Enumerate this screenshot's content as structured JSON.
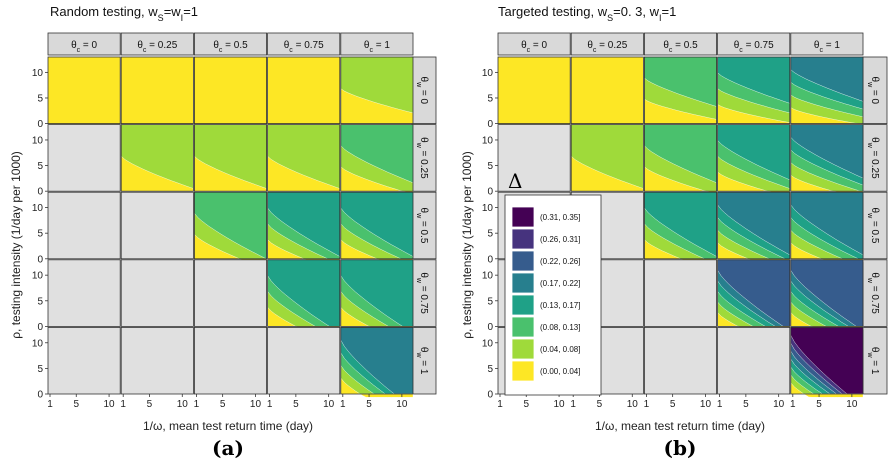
{
  "chart_data": [
    {
      "type": "heatmap",
      "panel": "(a)",
      "title": "Random testing, wS=wI=1",
      "title_main": "Random testing, w",
      "title_sub1": "S",
      "title_mid": "=w",
      "title_sub2": "I",
      "title_end": "=1",
      "xlabel": "1/ω, mean test return time (day)",
      "ylabel": "ρ, testing intensity (1/day per 1000)",
      "x_ticks": [
        1,
        5,
        10
      ],
      "y_ticks": [
        0,
        5,
        10
      ],
      "xlim": [
        1,
        12
      ],
      "ylim": [
        0,
        13
      ],
      "col_facet_name": "θc",
      "col_facets": [
        "0",
        "0.25",
        "0.5",
        "0.75",
        "1"
      ],
      "row_facet_name": "θw",
      "row_facets": [
        "0",
        "0.25",
        "0.5",
        "0.75",
        "1"
      ],
      "cells": [
        [
          {
            "levels": [
              0
            ]
          },
          {
            "levels": [
              0
            ]
          },
          {
            "levels": [
              0
            ]
          },
          {
            "levels": [
              0
            ]
          },
          {
            "levels": [
              0,
              1
            ]
          }
        ],
        [
          null,
          {
            "levels": [
              0,
              1
            ]
          },
          {
            "levels": [
              0,
              1
            ]
          },
          {
            "levels": [
              0,
              1
            ]
          },
          {
            "levels": [
              0,
              1,
              2
            ]
          }
        ],
        [
          null,
          null,
          {
            "levels": [
              0,
              1,
              2
            ]
          },
          {
            "levels": [
              0,
              1,
              2,
              3
            ]
          },
          {
            "levels": [
              0,
              1,
              2,
              3
            ]
          }
        ],
        [
          null,
          null,
          null,
          {
            "levels": [
              0,
              1,
              2,
              3
            ]
          },
          {
            "levels": [
              0,
              1,
              2,
              3
            ]
          }
        ],
        [
          null,
          null,
          null,
          null,
          {
            "levels": [
              0,
              1,
              2,
              3,
              4
            ]
          }
        ]
      ]
    },
    {
      "type": "heatmap",
      "panel": "(b)",
      "title": "Targeted testing, wS=0. 3, wI=1",
      "title_main": "Targeted testing, w",
      "title_sub1": "S",
      "title_mid": "=0. 3, w",
      "title_sub2": "I",
      "title_end": "=1",
      "xlabel": "1/ω, mean test return time (day)",
      "ylabel": "ρ, testing intensity (1/day per 1000)",
      "x_ticks": [
        1,
        5,
        10
      ],
      "y_ticks": [
        0,
        5,
        10
      ],
      "xlim": [
        1,
        12
      ],
      "ylim": [
        0,
        13
      ],
      "col_facet_name": "θc",
      "col_facets": [
        "0",
        "0.25",
        "0.5",
        "0.75",
        "1"
      ],
      "row_facet_name": "θw",
      "row_facets": [
        "0",
        "0.25",
        "0.5",
        "0.75",
        "1"
      ],
      "cells": [
        [
          {
            "levels": [
              0
            ]
          },
          {
            "levels": [
              0
            ]
          },
          {
            "levels": [
              0,
              1,
              2
            ]
          },
          {
            "levels": [
              0,
              1,
              2,
              3
            ]
          },
          {
            "levels": [
              0,
              1,
              2,
              3,
              4
            ]
          }
        ],
        [
          null,
          {
            "levels": [
              0,
              1
            ]
          },
          {
            "levels": [
              0,
              1,
              2
            ]
          },
          {
            "levels": [
              0,
              1,
              2,
              3
            ]
          },
          {
            "levels": [
              0,
              1,
              2,
              3,
              4
            ]
          }
        ],
        [
          null,
          null,
          {
            "levels": [
              0,
              1,
              2,
              3
            ]
          },
          {
            "levels": [
              0,
              1,
              2,
              3,
              4
            ]
          },
          {
            "levels": [
              0,
              1,
              2,
              3,
              4
            ]
          }
        ],
        [
          null,
          null,
          null,
          {
            "levels": [
              0,
              1,
              2,
              3,
              4,
              5
            ]
          },
          {
            "levels": [
              0,
              1,
              2,
              3,
              4,
              5
            ]
          }
        ],
        [
          null,
          null,
          null,
          null,
          {
            "levels": [
              0,
              1,
              2,
              3,
              4,
              5,
              6,
              7
            ]
          }
        ]
      ]
    }
  ],
  "legend": {
    "title": "Δ",
    "placement": "inside-bottom-left of panel (b)",
    "entries": [
      {
        "label": "(0.31, 0.35]",
        "color": "#440154"
      },
      {
        "label": "(0.26, 0.31]",
        "color": "#46337e"
      },
      {
        "label": "(0.22, 0.26]",
        "color": "#365c8d"
      },
      {
        "label": "(0.17, 0.22]",
        "color": "#277f8e"
      },
      {
        "label": "(0.13, 0.17]",
        "color": "#1fa187"
      },
      {
        "label": "(0.08, 0.13]",
        "color": "#4ac16d"
      },
      {
        "label": "(0.04, 0.08]",
        "color": "#9fda3a"
      },
      {
        "label": "(0.00, 0.04]",
        "color": "#fde725"
      }
    ]
  },
  "level_colors": [
    "#fde725",
    "#9fda3a",
    "#4ac16d",
    "#1fa187",
    "#277f8e",
    "#365c8d",
    "#46337e",
    "#440154"
  ],
  "empty_color": "#e0e0e0",
  "strip_color": "#d9d9d9",
  "panel_labels": [
    "(a)",
    "(b)"
  ]
}
